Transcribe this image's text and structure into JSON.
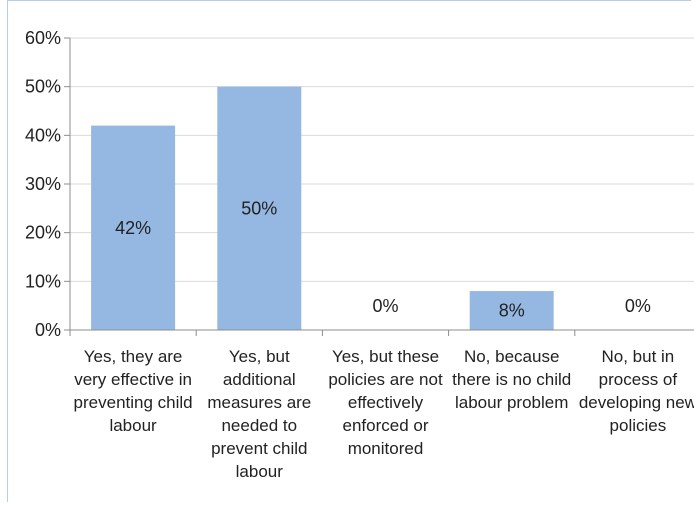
{
  "chart_data": {
    "type": "bar",
    "title": "",
    "xlabel": "",
    "ylabel": "",
    "categories": [
      "Yes, they are very effective in preventing child labour",
      "Yes, but additional measures are needed to prevent child labour",
      "Yes, but these policies are not effectively enforced or monitored",
      "No, because there is no child labour problem",
      "No, but in process of developing new policies"
    ],
    "values": [
      42,
      50,
      0,
      8,
      0
    ],
    "data_labels": [
      "42%",
      "50%",
      "0%",
      "8%",
      "0%"
    ],
    "ylim": [
      0,
      60
    ],
    "yticks": [
      0,
      10,
      20,
      30,
      40,
      50,
      60
    ],
    "ytick_labels": [
      "0%",
      "10%",
      "20%",
      "30%",
      "40%",
      "50%",
      "60%"
    ],
    "grid": true,
    "legend": "none",
    "bar_color": "#95b8e3"
  }
}
